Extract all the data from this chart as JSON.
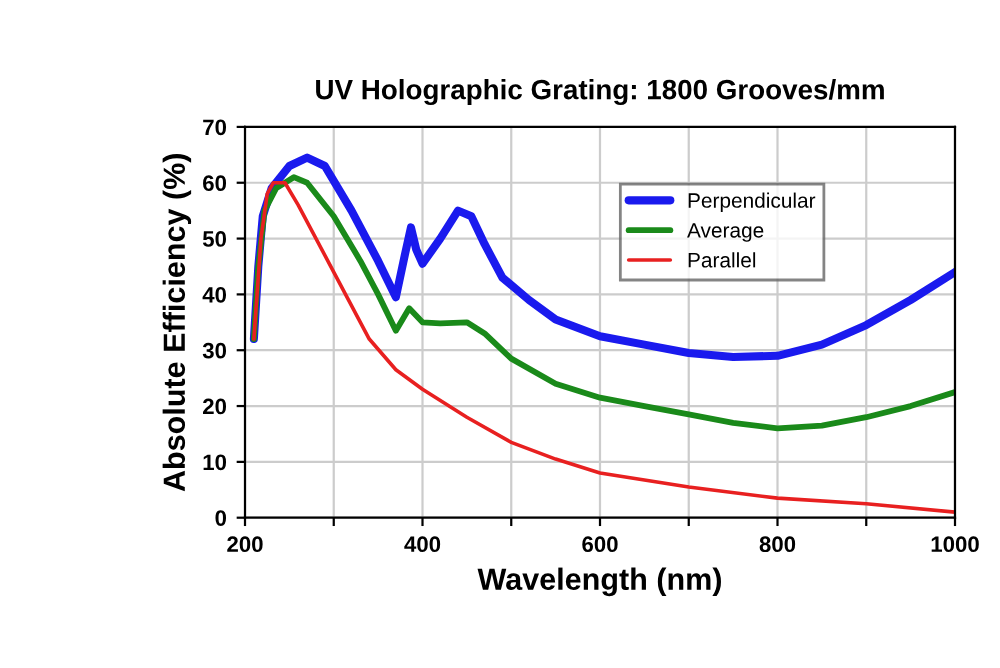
{
  "chart_data": {
    "type": "line",
    "title": "UV Holographic Grating: 1800 Grooves/mm",
    "xlabel": "Wavelength (nm)",
    "ylabel": "Absolute Efficiency (%)",
    "xlim": [
      200,
      1000
    ],
    "ylim": [
      0,
      70
    ],
    "xticks": [
      200,
      {
        "value": 300,
        "label": null
      },
      400,
      {
        "value": 500,
        "label": null
      },
      600,
      {
        "value": 700,
        "label": null
      },
      800,
      {
        "value": 900,
        "label": null
      },
      1000
    ],
    "yticks": [
      0,
      10,
      20,
      30,
      40,
      50,
      60,
      70
    ],
    "grid": true,
    "legend": "top right",
    "marker": "none",
    "line_style": "solid",
    "series": [
      {
        "name": "Perpendicular",
        "color": "#1a1aee",
        "x": [
          210,
          215,
          220,
          230,
          250,
          270,
          290,
          320,
          350,
          370,
          380,
          387,
          393,
          400,
          420,
          440,
          455,
          470,
          490,
          520,
          550,
          600,
          650,
          700,
          750,
          800,
          850,
          900,
          950,
          1000
        ],
        "values": [
          32,
          45,
          54,
          59,
          63,
          64.5,
          63,
          55,
          46,
          39.5,
          47,
          52,
          48,
          45.5,
          50,
          55,
          54,
          49,
          43,
          39,
          35.5,
          32.5,
          31,
          29.5,
          28.8,
          29,
          31,
          34.5,
          39,
          44
        ]
      },
      {
        "name": "Average",
        "color": "#1a8a1a",
        "x": [
          210,
          215,
          222,
          235,
          255,
          270,
          300,
          330,
          350,
          370,
          385,
          400,
          420,
          450,
          470,
          500,
          550,
          600,
          650,
          700,
          750,
          800,
          850,
          900,
          950,
          1000
        ],
        "values": [
          32,
          45,
          55,
          59,
          61,
          60,
          54,
          46,
          40,
          33.5,
          37.5,
          35,
          34.8,
          35,
          33,
          28.5,
          24,
          21.5,
          20,
          18.5,
          17,
          16,
          16.5,
          18,
          20,
          22.5
        ]
      },
      {
        "name": "Parallel",
        "color": "#e82020",
        "x": [
          210,
          218,
          225,
          232,
          245,
          260,
          300,
          340,
          370,
          400,
          450,
          500,
          550,
          600,
          700,
          800,
          900,
          1000
        ],
        "values": [
          32,
          50,
          58,
          60,
          60,
          56,
          44,
          32,
          26.5,
          23,
          18,
          13.5,
          10.5,
          8,
          5.5,
          3.5,
          2.5,
          1
        ]
      }
    ]
  }
}
